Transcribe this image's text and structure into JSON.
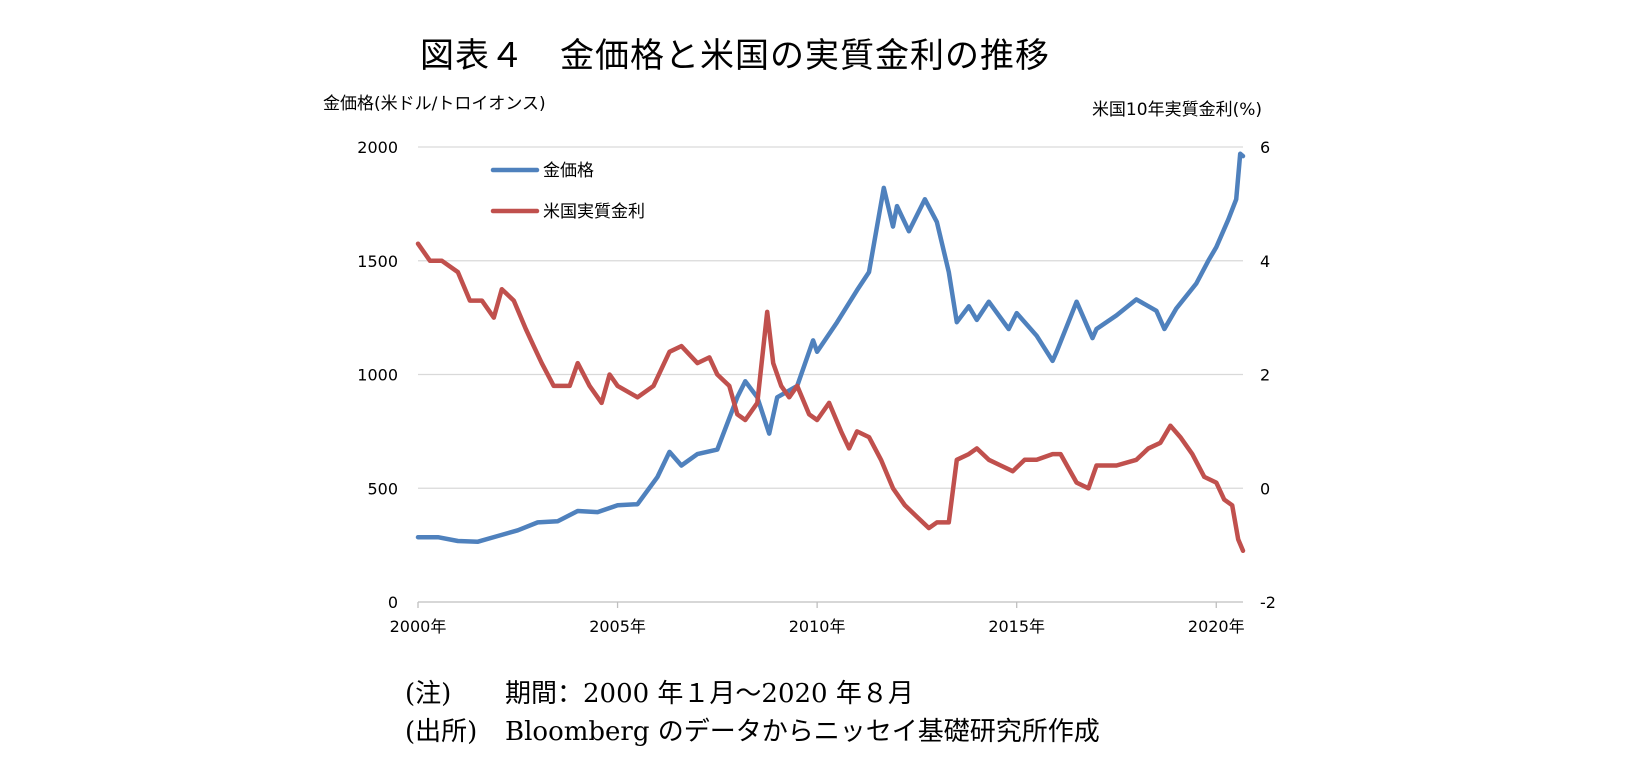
{
  "title": "図表４　金価格と米国の実質金利の推移",
  "colors": {
    "gold": "#4f81bd",
    "rate": "#c0504d",
    "grid": "#d9d9d9",
    "axis": "#bfbfbf"
  },
  "notes": [
    {
      "label": "(注)",
      "text": "期間：2000 年１月～2020 年８月"
    },
    {
      "label": "(出所)",
      "text": "Bloomberg のデータからニッセイ基礎研究所作成"
    }
  ],
  "chart_data": {
    "type": "line",
    "y_left_label": "金価格(米ドル/トロイオンス)",
    "y_right_label": "米国10年実質金利(%)",
    "ylim_left": [
      0,
      2000
    ],
    "ylim_right": [
      -2,
      6
    ],
    "yticks_left": [
      "0",
      "500",
      "1000",
      "1500",
      "2000"
    ],
    "yticks_right": [
      "-2",
      "0",
      "2",
      "4",
      "6"
    ],
    "x_range": [
      2000.0,
      2020.67
    ],
    "xticks": [
      {
        "value": 2000,
        "label": "2000年"
      },
      {
        "value": 2005,
        "label": "2005年"
      },
      {
        "value": 2010,
        "label": "2010年"
      },
      {
        "value": 2015,
        "label": "2015年"
      },
      {
        "value": 2020,
        "label": "2020年"
      }
    ],
    "grid": true,
    "legend_position": "top-left",
    "series": [
      {
        "name": "金価格",
        "axis": "left",
        "points": [
          [
            2000.0,
            285
          ],
          [
            2000.5,
            285
          ],
          [
            2001.0,
            268
          ],
          [
            2001.5,
            265
          ],
          [
            2002.0,
            290
          ],
          [
            2002.5,
            315
          ],
          [
            2003.0,
            350
          ],
          [
            2003.5,
            355
          ],
          [
            2004.0,
            400
          ],
          [
            2004.5,
            395
          ],
          [
            2005.0,
            425
          ],
          [
            2005.5,
            430
          ],
          [
            2006.0,
            550
          ],
          [
            2006.3,
            660
          ],
          [
            2006.6,
            600
          ],
          [
            2007.0,
            650
          ],
          [
            2007.5,
            670
          ],
          [
            2008.0,
            900
          ],
          [
            2008.2,
            970
          ],
          [
            2008.5,
            900
          ],
          [
            2008.8,
            740
          ],
          [
            2009.0,
            900
          ],
          [
            2009.5,
            950
          ],
          [
            2009.9,
            1150
          ],
          [
            2010.0,
            1100
          ],
          [
            2010.5,
            1230
          ],
          [
            2011.0,
            1370
          ],
          [
            2011.3,
            1450
          ],
          [
            2011.67,
            1820
          ],
          [
            2011.9,
            1650
          ],
          [
            2012.0,
            1740
          ],
          [
            2012.3,
            1630
          ],
          [
            2012.7,
            1770
          ],
          [
            2013.0,
            1670
          ],
          [
            2013.3,
            1450
          ],
          [
            2013.5,
            1230
          ],
          [
            2013.8,
            1300
          ],
          [
            2014.0,
            1240
          ],
          [
            2014.3,
            1320
          ],
          [
            2014.8,
            1200
          ],
          [
            2015.0,
            1270
          ],
          [
            2015.5,
            1170
          ],
          [
            2015.9,
            1060
          ],
          [
            2016.0,
            1100
          ],
          [
            2016.5,
            1320
          ],
          [
            2016.9,
            1160
          ],
          [
            2017.0,
            1200
          ],
          [
            2017.5,
            1260
          ],
          [
            2018.0,
            1330
          ],
          [
            2018.5,
            1280
          ],
          [
            2018.7,
            1200
          ],
          [
            2019.0,
            1290
          ],
          [
            2019.5,
            1400
          ],
          [
            2019.8,
            1500
          ],
          [
            2020.0,
            1560
          ],
          [
            2020.3,
            1680
          ],
          [
            2020.5,
            1770
          ],
          [
            2020.6,
            1970
          ],
          [
            2020.67,
            1960
          ]
        ]
      },
      {
        "name": "米国実質金利",
        "axis": "right",
        "points": [
          [
            2000.0,
            4.3
          ],
          [
            2000.3,
            4.0
          ],
          [
            2000.6,
            4.0
          ],
          [
            2001.0,
            3.8
          ],
          [
            2001.3,
            3.3
          ],
          [
            2001.6,
            3.3
          ],
          [
            2001.9,
            3.0
          ],
          [
            2002.1,
            3.5
          ],
          [
            2002.4,
            3.3
          ],
          [
            2002.7,
            2.8
          ],
          [
            2002.9,
            2.5
          ],
          [
            2003.1,
            2.2
          ],
          [
            2003.4,
            1.8
          ],
          [
            2003.8,
            1.8
          ],
          [
            2004.0,
            2.2
          ],
          [
            2004.3,
            1.8
          ],
          [
            2004.6,
            1.5
          ],
          [
            2004.8,
            2.0
          ],
          [
            2005.0,
            1.8
          ],
          [
            2005.5,
            1.6
          ],
          [
            2005.9,
            1.8
          ],
          [
            2006.3,
            2.4
          ],
          [
            2006.6,
            2.5
          ],
          [
            2007.0,
            2.2
          ],
          [
            2007.3,
            2.3
          ],
          [
            2007.5,
            2.0
          ],
          [
            2007.8,
            1.8
          ],
          [
            2008.0,
            1.3
          ],
          [
            2008.2,
            1.2
          ],
          [
            2008.5,
            1.5
          ],
          [
            2008.75,
            3.1
          ],
          [
            2008.9,
            2.2
          ],
          [
            2009.1,
            1.8
          ],
          [
            2009.3,
            1.6
          ],
          [
            2009.5,
            1.8
          ],
          [
            2009.8,
            1.3
          ],
          [
            2010.0,
            1.2
          ],
          [
            2010.3,
            1.5
          ],
          [
            2010.6,
            1.0
          ],
          [
            2010.8,
            0.7
          ],
          [
            2011.0,
            1.0
          ],
          [
            2011.3,
            0.9
          ],
          [
            2011.6,
            0.5
          ],
          [
            2011.9,
            0.0
          ],
          [
            2012.2,
            -0.3
          ],
          [
            2012.5,
            -0.5
          ],
          [
            2012.8,
            -0.7
          ],
          [
            2013.0,
            -0.6
          ],
          [
            2013.3,
            -0.6
          ],
          [
            2013.5,
            0.5
          ],
          [
            2013.8,
            0.6
          ],
          [
            2014.0,
            0.7
          ],
          [
            2014.3,
            0.5
          ],
          [
            2014.6,
            0.4
          ],
          [
            2014.9,
            0.3
          ],
          [
            2015.2,
            0.5
          ],
          [
            2015.5,
            0.5
          ],
          [
            2015.9,
            0.6
          ],
          [
            2016.1,
            0.6
          ],
          [
            2016.5,
            0.1
          ],
          [
            2016.8,
            0.0
          ],
          [
            2017.0,
            0.4
          ],
          [
            2017.5,
            0.4
          ],
          [
            2018.0,
            0.5
          ],
          [
            2018.3,
            0.7
          ],
          [
            2018.6,
            0.8
          ],
          [
            2018.85,
            1.1
          ],
          [
            2019.1,
            0.9
          ],
          [
            2019.4,
            0.6
          ],
          [
            2019.7,
            0.2
          ],
          [
            2020.0,
            0.1
          ],
          [
            2020.2,
            -0.2
          ],
          [
            2020.4,
            -0.3
          ],
          [
            2020.55,
            -0.9
          ],
          [
            2020.67,
            -1.1
          ]
        ]
      }
    ]
  }
}
